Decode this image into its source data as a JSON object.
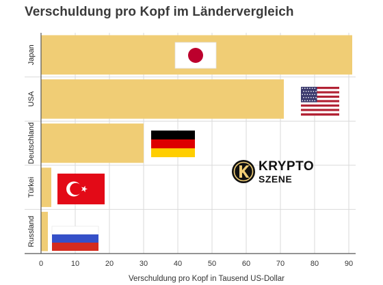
{
  "chart_data": {
    "type": "bar",
    "orientation": "horizontal",
    "title": "Verschuldung pro Kopf im Ländervergleich",
    "categories": [
      "Japan",
      "USA",
      "Deutschland",
      "Türkei",
      "Russland"
    ],
    "values": [
      91,
      71,
      30,
      3,
      2
    ],
    "xlabel": "Verschuldung pro Kopf in Tausend US-Dollar",
    "ylabel": "",
    "xlim": [
      0,
      92
    ],
    "xticks": [
      0,
      10,
      20,
      30,
      40,
      50,
      60,
      70,
      80,
      90
    ],
    "grid": "vertical",
    "bar_color": "#f0cd75",
    "grid_color": "#d9d9d9",
    "flags": [
      "japan-flag",
      "usa-flag",
      "germany-flag",
      "turkey-flag",
      "russia-flag"
    ]
  },
  "logo": {
    "line1": "KRYPTO",
    "line2": "SZENE"
  }
}
